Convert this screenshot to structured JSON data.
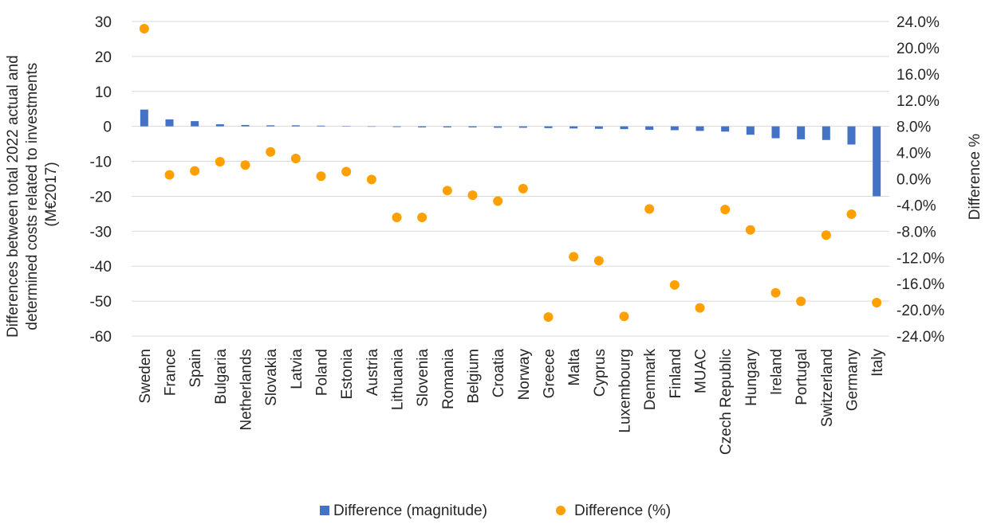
{
  "chart_data": {
    "type": "bar+scatter",
    "categories": [
      "Sweden",
      "France",
      "Spain",
      "Bulgaria",
      "Netherlands",
      "Slovakia",
      "Latvia",
      "Poland",
      "Estonia",
      "Austria",
      "Lithuania",
      "Slovenia",
      "Romania",
      "Belgium",
      "Croatia",
      "Norway",
      "Greece",
      "Malta",
      "Cyprus",
      "Luxembourg",
      "Denmark",
      "Finland",
      "MUAC",
      "Czech Republic",
      "Hungary",
      "Ireland",
      "Portugal",
      "Switzerland",
      "Germany",
      "Italy"
    ],
    "series": [
      {
        "name": "Difference (magnitude)",
        "type": "bar",
        "axis": "left",
        "color": "#4472C4",
        "values": [
          4.8,
          2.0,
          1.5,
          0.6,
          0.4,
          0.3,
          0.3,
          0.2,
          0.1,
          0.0,
          -0.2,
          -0.3,
          -0.3,
          -0.3,
          -0.4,
          -0.4,
          -0.5,
          -0.6,
          -0.7,
          -0.8,
          -1.0,
          -1.1,
          -1.3,
          -1.5,
          -2.4,
          -3.4,
          -3.7,
          -3.9,
          -5.2,
          -20.0
        ]
      },
      {
        "name": "Difference (%)",
        "type": "scatter",
        "axis": "right",
        "color": "#FFA000",
        "values": [
          22.9,
          0.6,
          1.2,
          2.6,
          2.1,
          4.1,
          3.1,
          0.4,
          1.1,
          -0.1,
          -5.9,
          -5.9,
          -1.8,
          -2.5,
          -3.4,
          -1.5,
          -21.1,
          -11.9,
          -12.5,
          -21.0,
          -4.6,
          -16.2,
          -19.7,
          -4.7,
          -7.8,
          -17.4,
          -18.7,
          -8.6,
          -5.4,
          -18.9
        ]
      }
    ],
    "y_left": {
      "label": "Differences between total 2022 actual and determined costs related to investments (M€2017)",
      "label_lines": [
        "Differences between total 2022 actual and",
        "determined costs related to investments",
        "(M€2017)"
      ],
      "min": -60,
      "max": 30,
      "step": 10,
      "ticks": [
        "30",
        "20",
        "10",
        "0",
        "-10",
        "-20",
        "-30",
        "-40",
        "-50",
        "-60"
      ]
    },
    "y_right": {
      "label": "Difference %",
      "min": -24,
      "max": 24,
      "step": 4,
      "ticks": [
        "24.0%",
        "20.0%",
        "16.0%",
        "12.0%",
        "8.0%",
        "4.0%",
        "0.0%",
        "-4.0%",
        "-8.0%",
        "-12.0%",
        "-16.0%",
        "-20.0%",
        "-24.0%"
      ]
    },
    "grid": true,
    "legend": {
      "position": "bottom",
      "items": [
        "Difference (magnitude)",
        "Difference (%)"
      ]
    }
  }
}
